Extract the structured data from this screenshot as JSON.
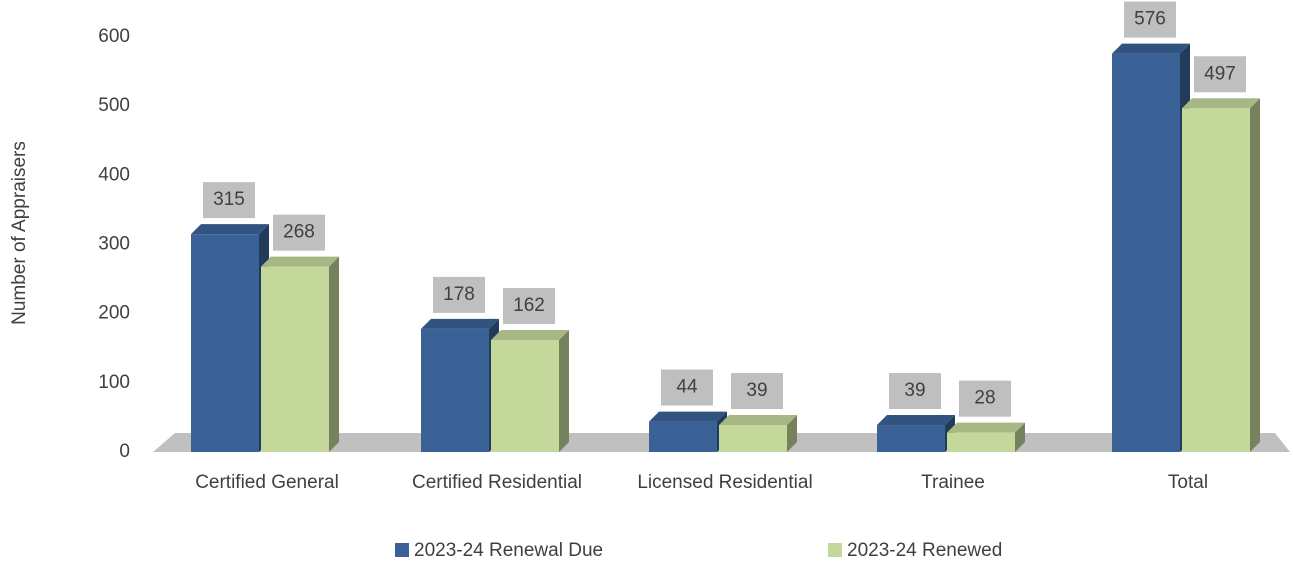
{
  "chart_data": {
    "type": "bar3d",
    "y_label": "Number of Appraisers",
    "categories": [
      "Certified General",
      "Certified Residential",
      "Licensed Residential",
      "Trainee",
      "Total"
    ],
    "series": [
      {
        "name": "2023-24 Renewal Due",
        "color": "#3a6296",
        "values": [
          315,
          178,
          44,
          39,
          576
        ]
      },
      {
        "name": "2023-24 Renewed",
        "color": "#c4d89c",
        "values": [
          268,
          162,
          39,
          28,
          497
        ]
      }
    ],
    "ylim": [
      0,
      600
    ],
    "yticks": [
      0,
      100,
      200,
      300,
      400,
      500,
      600
    ],
    "legend": "bottom",
    "data_labels": true
  }
}
